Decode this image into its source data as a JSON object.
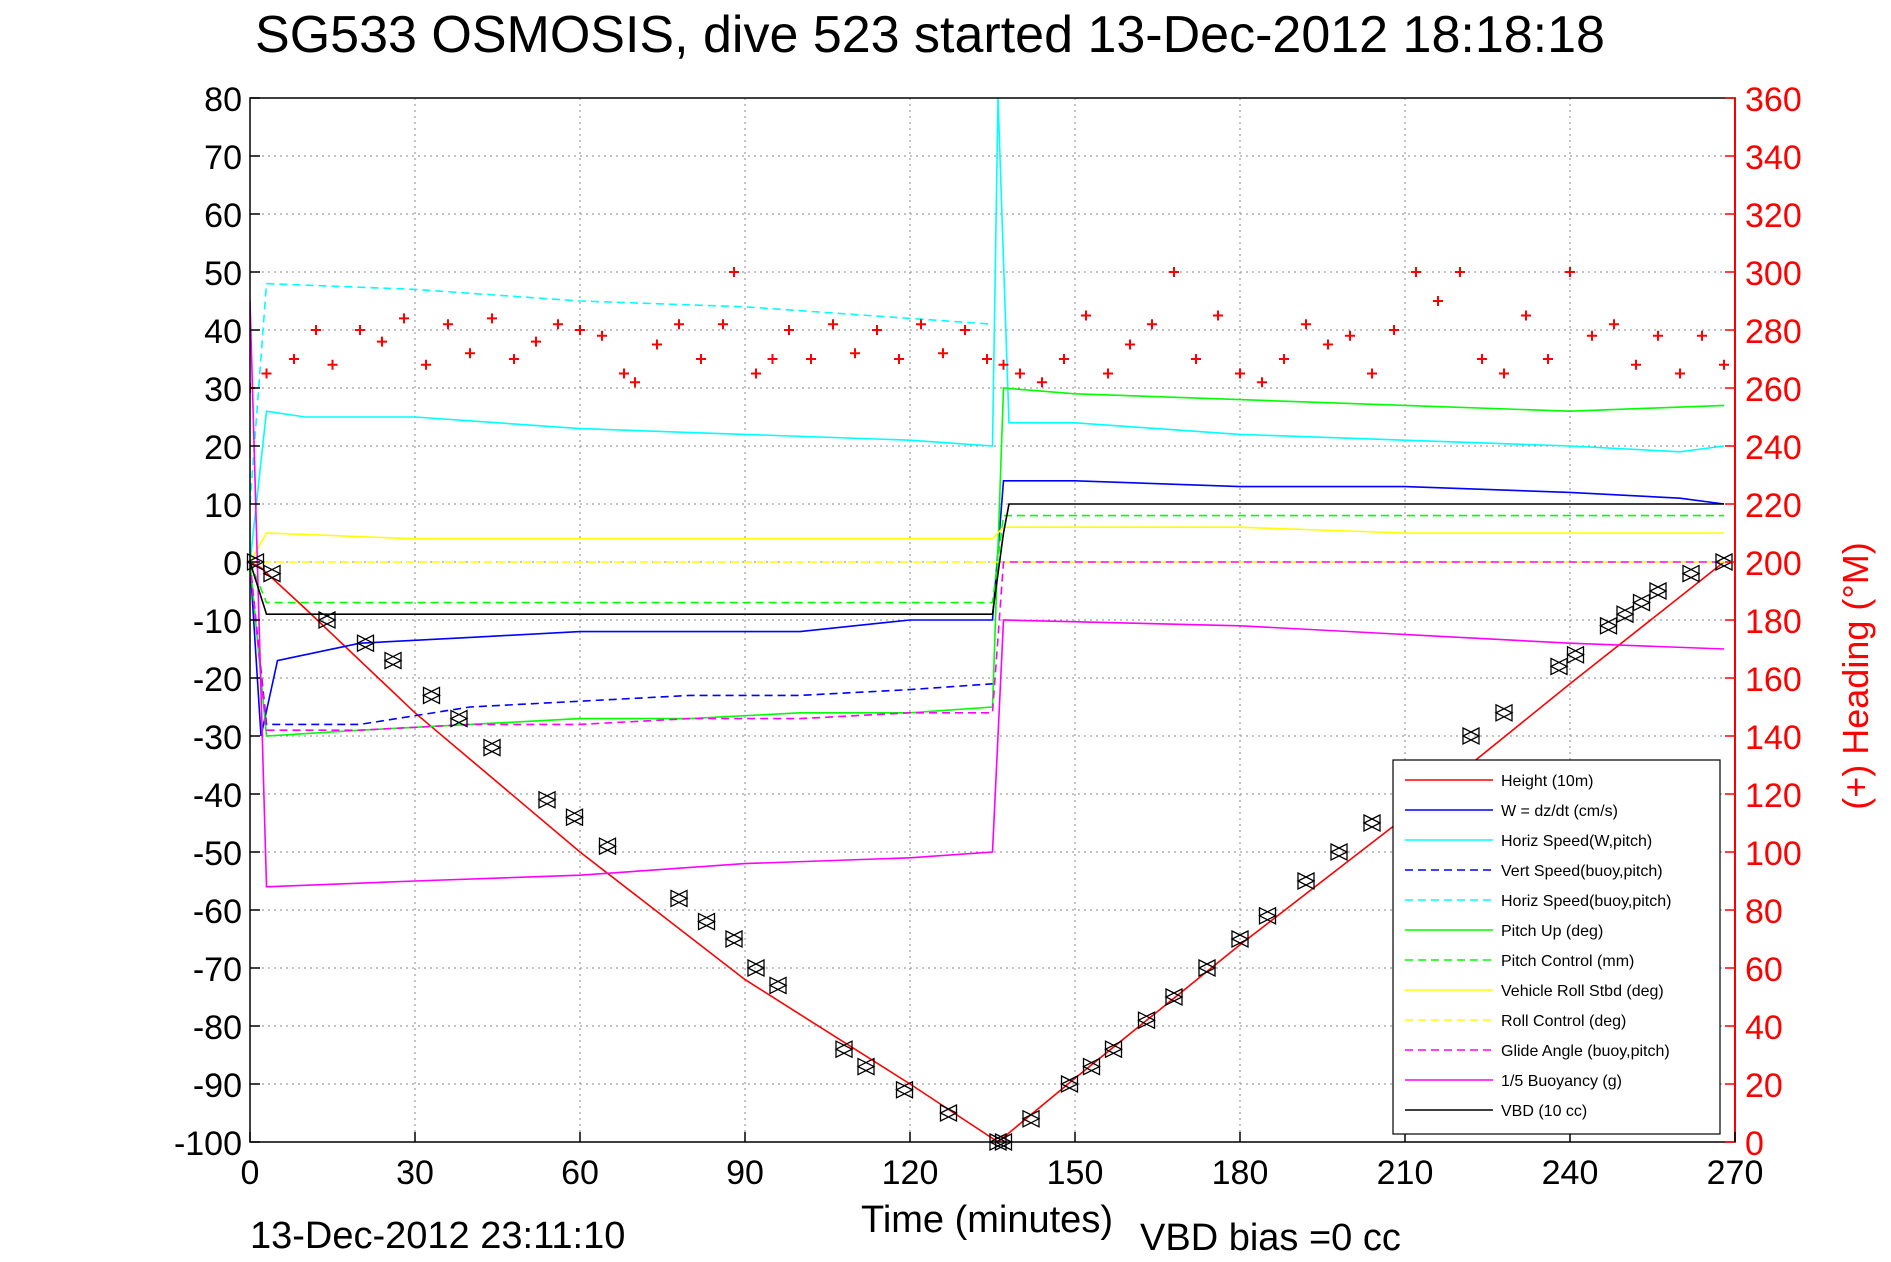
{
  "chart_data": {
    "type": "line",
    "title": "SG533 OSMOSIS, dive 523 started 13-Dec-2012 18:18:18",
    "xlabel": "Time (minutes)",
    "ylabel": "",
    "y2label": "(+) Heading (°M)",
    "footer_left": "13-Dec-2012 23:11:10",
    "footer_right": "VBD bias =0 cc",
    "xlim": [
      0,
      270
    ],
    "ylim": [
      -100,
      80
    ],
    "y2lim": [
      0,
      360
    ],
    "grid": true,
    "legend_position": "bottom-right",
    "x_ticks": [
      "0",
      "30",
      "60",
      "90",
      "120",
      "150",
      "180",
      "210",
      "240",
      "270"
    ],
    "y_ticks": [
      "80",
      "70",
      "60",
      "50",
      "40",
      "30",
      "20",
      "10",
      "0",
      "-10",
      "-20",
      "-30",
      "-40",
      "-50",
      "-60",
      "-70",
      "-80",
      "-90",
      "-100"
    ],
    "y2_ticks": [
      "360",
      "340",
      "320",
      "300",
      "280",
      "260",
      "240",
      "220",
      "200",
      "180",
      "160",
      "140",
      "120",
      "100",
      "80",
      "60",
      "40",
      "20",
      "0"
    ],
    "series": [
      {
        "name": "Height (10m)",
        "color": "#ff0000",
        "style": "solid",
        "x": [
          0,
          2,
          10,
          30,
          60,
          90,
          120,
          136,
          150,
          180,
          210,
          240,
          268
        ],
        "y": [
          0,
          -1,
          -8,
          -26,
          -50,
          -72,
          -90,
          -100,
          -89,
          -66,
          -44,
          -21,
          0
        ]
      },
      {
        "name": "W = dz/dt (cm/s)",
        "color": "#0000ff",
        "style": "solid",
        "x": [
          0,
          2,
          5,
          20,
          40,
          60,
          80,
          100,
          120,
          135,
          137,
          150,
          180,
          210,
          240,
          260,
          268
        ],
        "y": [
          0,
          -30,
          -17,
          -14,
          -13,
          -12,
          -12,
          -12,
          -10,
          -10,
          14,
          14,
          13,
          13,
          12,
          11,
          10
        ]
      },
      {
        "name": "Horiz Speed(W,pitch)",
        "color": "#00ffff",
        "style": "solid",
        "x": [
          0,
          3,
          10,
          30,
          60,
          90,
          120,
          135,
          136,
          138,
          150,
          180,
          210,
          240,
          260,
          268
        ],
        "y": [
          0,
          26,
          25,
          25,
          23,
          22,
          21,
          20,
          80,
          24,
          24,
          22,
          21,
          20,
          19,
          20
        ]
      },
      {
        "name": "Vert Speed(buoy,pitch)",
        "color": "#0000ff",
        "style": "dashed",
        "x": [
          0,
          3,
          20,
          40,
          60,
          80,
          100,
          120,
          135
        ],
        "y": [
          0,
          -28,
          -28,
          -25,
          -24,
          -23,
          -23,
          -22,
          -21
        ]
      },
      {
        "name": "Horiz Speed(buoy,pitch)",
        "color": "#00ffff",
        "style": "dashed",
        "x": [
          0,
          3,
          30,
          60,
          90,
          120,
          135
        ],
        "y": [
          10,
          48,
          47,
          45,
          44,
          42,
          41
        ]
      },
      {
        "name": "Pitch Up (deg)",
        "color": "#00ff00",
        "style": "solid",
        "x": [
          0,
          3,
          20,
          40,
          60,
          80,
          100,
          120,
          135,
          137,
          150,
          180,
          210,
          240,
          268
        ],
        "y": [
          0,
          -30,
          -29,
          -28,
          -27,
          -27,
          -26,
          -26,
          -25,
          30,
          29,
          28,
          27,
          26,
          27
        ]
      },
      {
        "name": "Pitch Control (mm)",
        "color": "#00ff00",
        "style": "dashed",
        "x": [
          0,
          3,
          135,
          137,
          268
        ],
        "y": [
          0,
          -7,
          -7,
          8,
          8
        ]
      },
      {
        "name": "Vehicle Roll Stbd (deg)",
        "color": "#ffff00",
        "style": "solid",
        "x": [
          0,
          3,
          30,
          60,
          90,
          120,
          135,
          137,
          150,
          180,
          210,
          240,
          268
        ],
        "y": [
          0,
          5,
          4,
          4,
          4,
          4,
          4,
          6,
          6,
          6,
          5,
          5,
          5
        ]
      },
      {
        "name": "Roll Control (deg)",
        "color": "#ffff00",
        "style": "dashed",
        "x": [
          0,
          268
        ],
        "y": [
          0,
          0
        ]
      },
      {
        "name": "Glide Angle (buoy,pitch)",
        "color": "#ff00ff",
        "style": "dashed",
        "x": [
          0,
          3,
          20,
          40,
          60,
          80,
          100,
          120,
          135,
          137,
          268
        ],
        "y": [
          0,
          -29,
          -29,
          -28,
          -28,
          -27,
          -27,
          -26,
          -26,
          0,
          0
        ]
      },
      {
        "name": "1/5 Buoyancy (g)",
        "color": "#ff00ff",
        "style": "solid",
        "x": [
          0,
          3,
          30,
          60,
          90,
          120,
          135,
          137,
          180,
          240,
          268
        ],
        "y": [
          45,
          -56,
          -55,
          -54,
          -52,
          -51,
          -50,
          -10,
          -11,
          -14,
          -15
        ]
      },
      {
        "name": "VBD (10 cc)",
        "color": "#000000",
        "style": "solid",
        "x": [
          0,
          3,
          135,
          137,
          138,
          268
        ],
        "y": [
          0,
          -9,
          -9,
          5,
          10,
          10
        ]
      }
    ],
    "heading": {
      "name": "Heading (°M)",
      "color": "#ff0000",
      "style": "plus-markers",
      "x": [
        0,
        3,
        8,
        12,
        15,
        20,
        24,
        28,
        32,
        36,
        40,
        44,
        48,
        52,
        56,
        60,
        64,
        68,
        70,
        74,
        78,
        82,
        86,
        88,
        92,
        95,
        98,
        102,
        106,
        110,
        114,
        118,
        122,
        126,
        130,
        134,
        137,
        140,
        144,
        148,
        152,
        156,
        160,
        164,
        168,
        172,
        176,
        180,
        184,
        188,
        192,
        196,
        200,
        204,
        208,
        212,
        216,
        220,
        224,
        228,
        232,
        236,
        240,
        244,
        248,
        252,
        256,
        260,
        264,
        268
      ],
      "y": [
        260,
        265,
        270,
        280,
        268,
        280,
        276,
        284,
        268,
        282,
        272,
        284,
        270,
        276,
        282,
        280,
        278,
        265,
        262,
        275,
        282,
        270,
        282,
        300,
        265,
        270,
        280,
        270,
        282,
        272,
        280,
        270,
        282,
        272,
        280,
        270,
        268,
        265,
        262,
        270,
        285,
        265,
        275,
        282,
        300,
        270,
        285,
        265,
        262,
        270,
        282,
        275,
        278,
        265,
        280,
        300,
        290,
        300,
        270,
        265,
        285,
        270,
        300,
        278,
        282,
        268,
        278,
        265,
        278,
        268
      ]
    },
    "markers": {
      "name": "Height markers",
      "color": "#000000",
      "style": "triangles",
      "x": [
        1,
        4,
        14,
        21,
        26,
        33,
        38,
        44,
        54,
        59,
        65,
        78,
        83,
        88,
        92,
        96,
        108,
        112,
        119,
        127,
        136,
        137,
        142,
        149,
        153,
        157,
        163,
        168,
        174,
        180,
        185,
        192,
        198,
        204,
        214,
        222,
        228,
        238,
        241,
        247,
        250,
        253,
        256,
        262,
        268
      ],
      "y": [
        0,
        -2,
        -10,
        -14,
        -17,
        -23,
        -27,
        -32,
        -41,
        -44,
        -49,
        -58,
        -62,
        -65,
        -70,
        -73,
        -84,
        -87,
        -91,
        -95,
        -100,
        -100,
        -96,
        -90,
        -87,
        -84,
        -79,
        -75,
        -70,
        -65,
        -61,
        -55,
        -50,
        -45,
        -37,
        -30,
        -26,
        -18,
        -16,
        -11,
        -9,
        -7,
        -5,
        -2,
        0
      ]
    }
  }
}
